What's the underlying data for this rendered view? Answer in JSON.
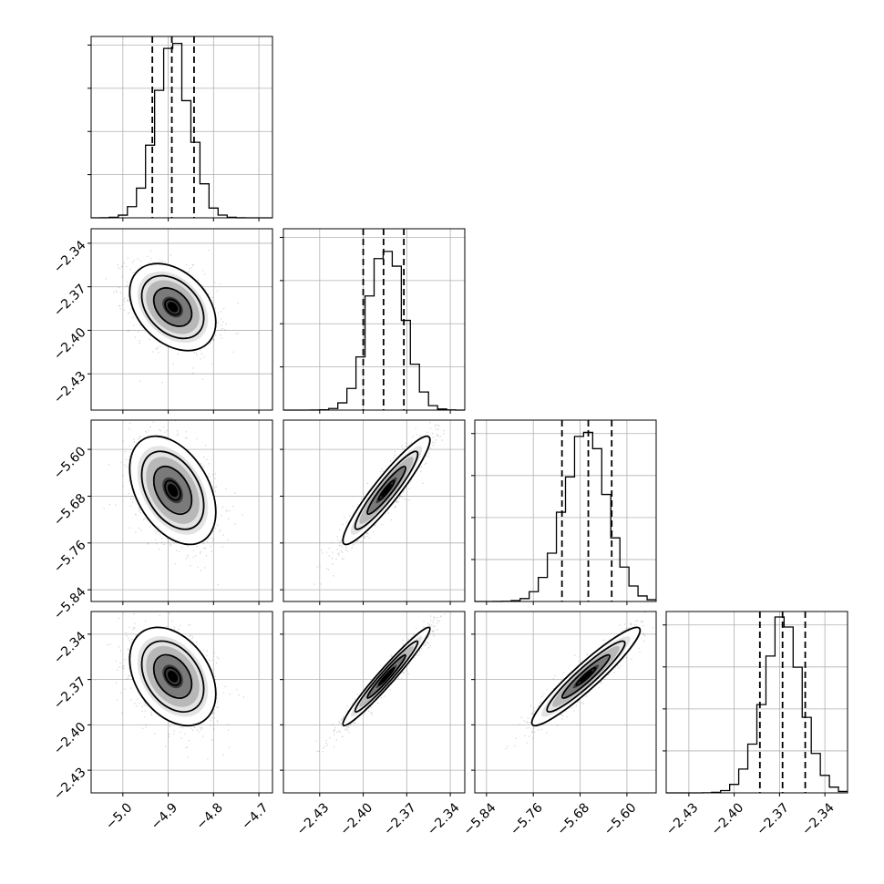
{
  "chart_data": {
    "type": "corner",
    "grid": true,
    "parameters": [
      {
        "range": [
          -5.07,
          -4.67
        ],
        "ticks": [
          -5.0,
          -4.9,
          -4.8,
          -4.7
        ],
        "tick_labels": [
          "−5.0",
          "−4.9",
          "−4.8",
          "−4.7"
        ],
        "quantiles": [
          -4.935,
          -4.892,
          -4.843
        ],
        "center": -4.89,
        "sd": 0.038
      },
      {
        "range": [
          -2.455,
          -2.33
        ],
        "ticks": [
          -2.43,
          -2.4,
          -2.37,
          -2.34
        ],
        "tick_labels": [
          "−2.43",
          "−2.40",
          "−2.37",
          "−2.34"
        ],
        "quantiles": [
          -2.4,
          -2.386,
          -2.372
        ],
        "center": -2.384,
        "sd": 0.012
      },
      {
        "range": [
          -5.86,
          -5.55
        ],
        "ticks": [
          -5.84,
          -5.76,
          -5.68,
          -5.6
        ],
        "tick_labels": [
          "−5.84",
          "−5.76",
          "−5.68",
          "−5.60"
        ],
        "quantiles": [
          -5.711,
          -5.666,
          -5.626
        ],
        "center": -5.67,
        "sd": 0.037
      },
      {
        "range": [
          -2.445,
          -2.325
        ],
        "ticks": [
          -2.43,
          -2.4,
          -2.37,
          -2.34
        ],
        "tick_labels": [
          "−2.43",
          "−2.40",
          "−2.37",
          "−2.34"
        ],
        "quantiles": [
          -2.383,
          -2.368,
          -2.353
        ],
        "center": -2.368,
        "sd": 0.013
      }
    ],
    "correlations": {
      "1-0": -0.35,
      "2-0": -0.4,
      "2-1": 0.93,
      "3-0": -0.35,
      "3-1": 0.97,
      "3-2": 0.94
    },
    "hist_y_max": [
      1.05,
      1.05,
      1.08,
      1.08
    ]
  }
}
